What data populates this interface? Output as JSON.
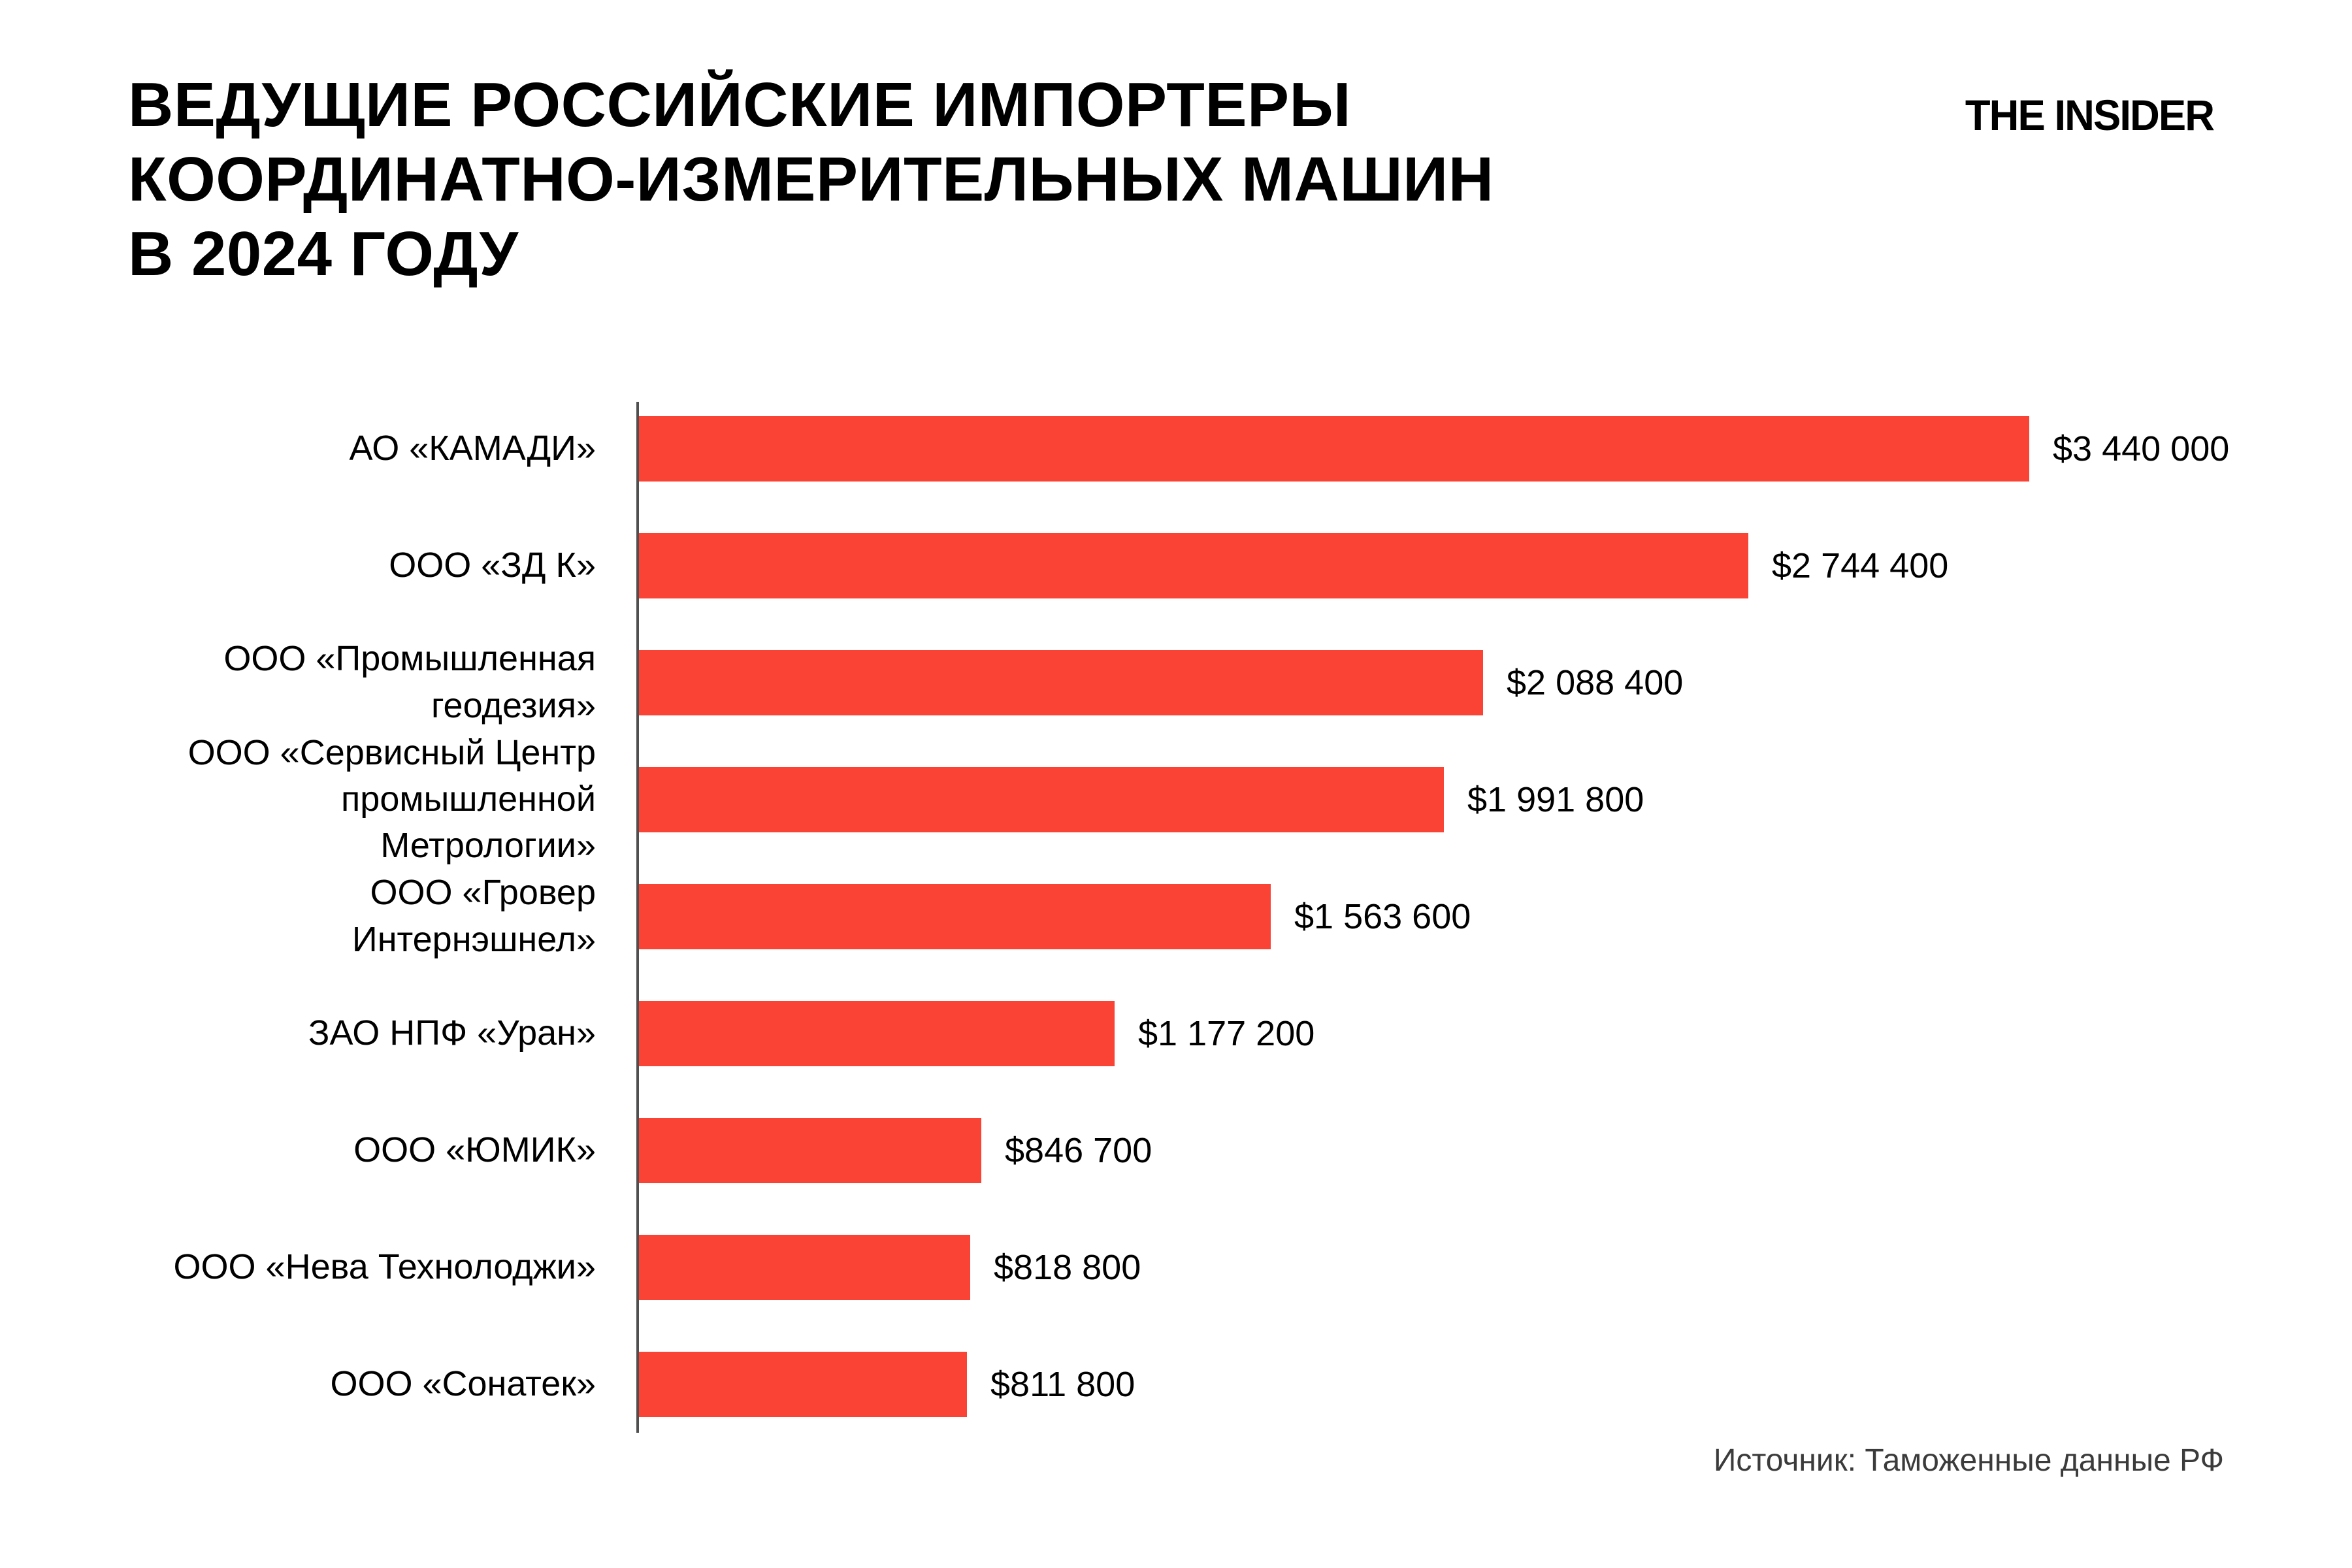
{
  "page": {
    "background": "#ffffff"
  },
  "header": {
    "title": "ВЕДУЩИЕ РОССИЙСКИЕ ИМПОРТЕРЫ\nКООРДИНАТНО-ИЗМЕРИТЕЛЬНЫХ МАШИН\nВ 2024 ГОДУ",
    "logo": "THE INSIDER"
  },
  "footer": {
    "source": "Источник: Таможенные данные РФ"
  },
  "colors": {
    "bar": "#FA4235",
    "axis": "#4F4F4F",
    "title_text": "#000000",
    "label_text": "#000000",
    "value_text": "#000000",
    "source_text": "#3B3B3B"
  },
  "chart_data": {
    "type": "bar",
    "orientation": "horizontal",
    "title": "ВЕДУЩИЕ РОССИЙСКИЕ ИМПОРТЕРЫ КООРДИНАТНО-ИЗМЕРИТЕЛЬНЫХ МАШИН В 2024 ГОДУ",
    "unit": "USD",
    "xlim": [
      0,
      3440000
    ],
    "grid": false,
    "legend": false,
    "categories": [
      "АО «КАМАДИ»",
      "ООО «ЗД К»",
      "ООО «Промышленная\nгеодезия»",
      "ООО «Сервисный Центр\nпромышленной Метрологии»",
      "ООО «Гровер Интернэшнел»",
      "ЗАО НПФ «Уран»",
      "ООО «ЮМИК»",
      "ООО «Нева Технолоджи»",
      "ООО «Сонатек»"
    ],
    "values": [
      3440000,
      2744400,
      2088400,
      1991800,
      1563600,
      1177200,
      846700,
      818800,
      811800
    ],
    "value_labels": [
      "$3 440 000",
      "$2 744 400",
      "$2 088 400",
      "$1 991 800",
      "$1 563 600",
      "$1 177 200",
      "$846 700",
      "$818 800",
      "$811 800"
    ]
  }
}
